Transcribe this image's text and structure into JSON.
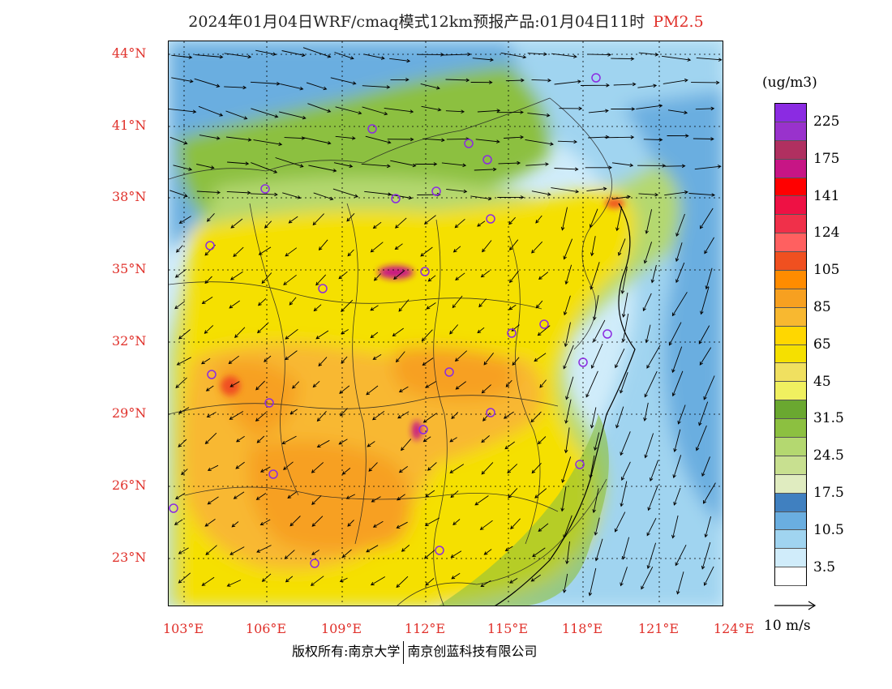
{
  "header": {
    "title": "2024年01月04日WRF/cmaq模式12km预报产品:01月04日11时",
    "pollutant": "PM2.5"
  },
  "map": {
    "lat_labels": [
      "44°N",
      "41°N",
      "38°N",
      "35°N",
      "32°N",
      "29°N",
      "26°N",
      "23°N"
    ],
    "lon_labels": [
      "103°E",
      "106°E",
      "109°E",
      "112°E",
      "115°E",
      "118°E",
      "121°E",
      "124°E"
    ],
    "lon_range": [
      103,
      124
    ],
    "lat_range": [
      21,
      44.5
    ]
  },
  "colorbar": {
    "unit": "(ug/m3)",
    "colors_top_to_bottom": [
      "#8b2be2",
      "#9932cc",
      "#b03060",
      "#c71585",
      "#ff0000",
      "#ee1144",
      "#f0304a",
      "#ff6060",
      "#f05020",
      "#ff8c00",
      "#f7a020",
      "#f8b830",
      "#ffd700",
      "#f5e000",
      "#f0e060",
      "#f0f060",
      "#6aa830",
      "#8cc040",
      "#b4d870",
      "#c8e090",
      "#e0ecc0",
      "#4080c0",
      "#6aaee0",
      "#a0d4f0",
      "#d0ecfa",
      "#ffffff"
    ],
    "labels": [
      "225",
      "175",
      "141",
      "124",
      "105",
      "85",
      "65",
      "45",
      "31.5",
      "24.5",
      "17.5",
      "10.5",
      "3.5"
    ]
  },
  "wind_reference": {
    "label": "10 m/s"
  },
  "footer": {
    "copyright_left": "版权所有:南京大学",
    "copyright_right": "南京创蓝科技有限公司"
  }
}
